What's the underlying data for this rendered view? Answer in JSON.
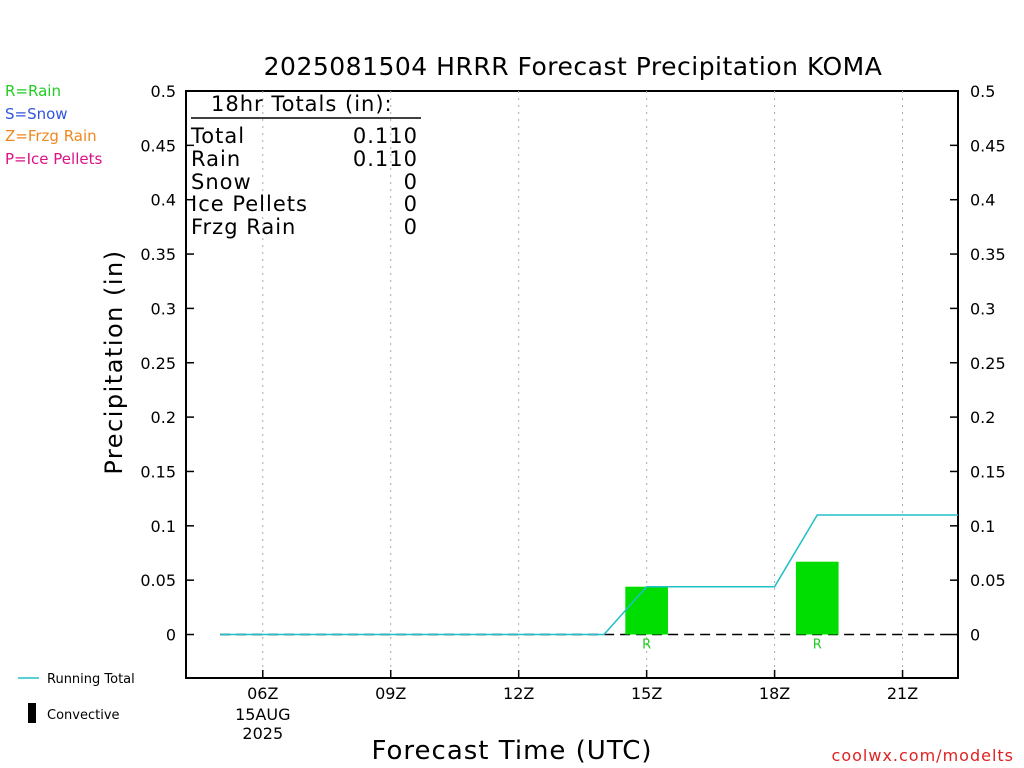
{
  "chart_data": {
    "type": "bar",
    "title": "2025081504 HRRR Forecast Precipitation KOMA",
    "xlabel": "Forecast Time (UTC)",
    "ylabel": "Precipitation (in)",
    "ylim": [
      -0.04,
      0.5
    ],
    "yticks": [
      0,
      0.05,
      0.1,
      0.15,
      0.2,
      0.25,
      0.3,
      0.35,
      0.4,
      0.45,
      0.5
    ],
    "ytick_labels": [
      "0",
      "0.05",
      "0.1",
      "0.15",
      "0.2",
      "0.25",
      "0.3",
      "0.35",
      "0.4",
      "0.45",
      "0.5"
    ],
    "xlim": [
      4.2,
      22.3
    ],
    "xticks": [
      {
        "hour": 6,
        "label": "06Z",
        "sub1": "15AUG",
        "sub2": "2025"
      },
      {
        "hour": 9,
        "label": "09Z"
      },
      {
        "hour": 12,
        "label": "12Z"
      },
      {
        "hour": 15,
        "label": "15Z"
      },
      {
        "hour": 18,
        "label": "18Z"
      },
      {
        "hour": 21,
        "label": "21Z"
      }
    ],
    "grid": true,
    "bars": [
      {
        "hour": 15,
        "value": 0.044,
        "type": "R",
        "color": "#00dd00"
      },
      {
        "hour": 19,
        "value": 0.067,
        "type": "R",
        "color": "#00dd00"
      }
    ],
    "baseline_hours": [
      5,
      22.3
    ],
    "running_total": {
      "name": "Running Total",
      "color": "#20c0c8",
      "x": [
        5,
        14,
        15,
        18,
        19,
        22.3
      ],
      "y": [
        0,
        0,
        0.044,
        0.044,
        0.11,
        0.11
      ]
    }
  },
  "totals": {
    "heading": "18hr Totals (in):",
    "rows": [
      {
        "label": "Total",
        "value": "0.110"
      },
      {
        "label": "Rain",
        "value": "0.110"
      },
      {
        "label": "Snow",
        "value": "0"
      },
      {
        "label": "Ice Pellets",
        "value": "0"
      },
      {
        "label": "Frzg Rain",
        "value": "0"
      }
    ]
  },
  "type_legend": [
    {
      "text": "R=Rain",
      "color": "#22cc22"
    },
    {
      "text": "S=Snow",
      "color": "#3355dd"
    },
    {
      "text": "Z=Frzg Rain",
      "color": "#ee8822"
    },
    {
      "text": "P=Ice Pellets",
      "color": "#dd1188"
    }
  ],
  "bottom_legend": {
    "running_total": "Running Total",
    "convective": "Convective"
  },
  "credit": {
    "text": "coolwx.com/modelts",
    "color": "#dd2222"
  }
}
